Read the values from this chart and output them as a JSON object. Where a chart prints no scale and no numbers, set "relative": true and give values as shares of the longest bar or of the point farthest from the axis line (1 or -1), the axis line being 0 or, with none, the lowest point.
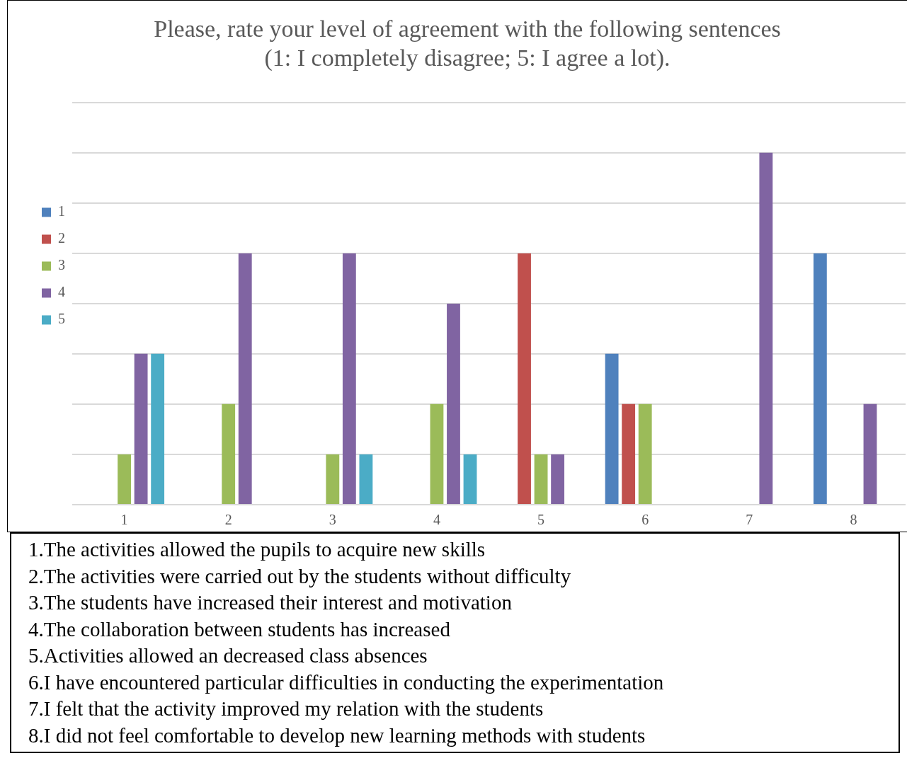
{
  "chart_data": {
    "type": "bar",
    "title": [
      "Please, rate your level of agreement with the following sentences",
      "(1: I completely disagree; 5: I agree a lot)."
    ],
    "categories": [
      "1",
      "2",
      "3",
      "4",
      "5",
      "6",
      "7",
      "8"
    ],
    "relative": true,
    "grid": "y",
    "legend": "left",
    "series": [
      {
        "name": "1",
        "color": "#4f81bd",
        "values": [
          0,
          0,
          0,
          0,
          0,
          0.429,
          0,
          0.714
        ]
      },
      {
        "name": "2",
        "color": "#c0504d",
        "values": [
          0,
          0,
          0,
          0,
          0.714,
          0.286,
          0,
          0
        ]
      },
      {
        "name": "3",
        "color": "#9bbb59",
        "values": [
          0.143,
          0.286,
          0.143,
          0.286,
          0.143,
          0.286,
          0,
          0
        ]
      },
      {
        "name": "4",
        "color": "#8064a2",
        "values": [
          0.429,
          0.714,
          0.714,
          0.571,
          0.143,
          0,
          1,
          0.286
        ]
      },
      {
        "name": "5",
        "color": "#4bacc6",
        "values": [
          0.429,
          0,
          0.143,
          0.143,
          0,
          0,
          0,
          0
        ]
      }
    ],
    "annotations": [
      "1.The activities allowed the pupils to acquire new skills",
      "2.The activities were carried out by the students without difficulty",
      "3.The students have increased their interest and motivation",
      "4.The collaboration between students has increased",
      "5.Activities allowed an decreased class absences",
      "6.I have encountered particular difficulties in conducting the experimentation",
      "7.I felt that the activity improved my relation with the students",
      "8.I did not feel comfortable to develop new learning methods with students"
    ]
  }
}
